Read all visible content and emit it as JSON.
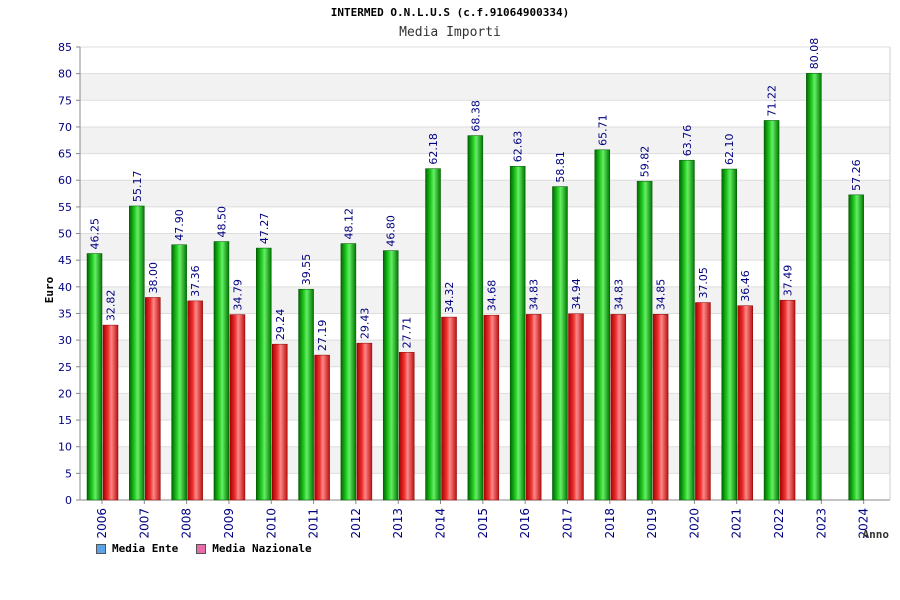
{
  "header": {
    "title": "INTERMED O.N.L.U.S (c.f.91064900334)",
    "subtitle": "Media Importi"
  },
  "legend": {
    "ente_label": "Media Ente",
    "nazionale_label": "Media Nazionale",
    "ente_swatch_color": "#5ba3e6",
    "nazionale_swatch_color": "#e86aa6"
  },
  "chart_data": {
    "type": "bar",
    "title": "INTERMED O.N.L.U.S (c.f.91064900334)",
    "subtitle": "Media Importi",
    "xlabel": "Anno",
    "ylabel": "Euro",
    "ylim": [
      0,
      85
    ],
    "yticks": [
      0,
      5,
      10,
      15,
      20,
      25,
      30,
      35,
      40,
      45,
      50,
      55,
      60,
      65,
      70,
      75,
      80,
      85
    ],
    "categories": [
      "2006",
      "2007",
      "2008",
      "2009",
      "2010",
      "2011",
      "2012",
      "2013",
      "2014",
      "2015",
      "2016",
      "2017",
      "2018",
      "2019",
      "2020",
      "2021",
      "2022",
      "2023",
      "2024"
    ],
    "series": [
      {
        "name": "Media Ente",
        "color": "#00aa00",
        "values": [
          46.25,
          55.17,
          47.9,
          48.5,
          47.27,
          39.55,
          48.12,
          46.8,
          62.18,
          68.38,
          62.63,
          58.81,
          65.71,
          59.82,
          63.76,
          62.1,
          71.22,
          80.08,
          57.26
        ],
        "labels": [
          "46.25",
          "55.17",
          "47.90",
          "48.50",
          "47.27",
          "39.55",
          "48.12",
          "46.80",
          "62.18",
          "68.38",
          "62.63",
          "58.81",
          "65.71",
          "59.82",
          "63.76",
          "62.10",
          "71.22",
          "80.08",
          "57.26"
        ]
      },
      {
        "name": "Media Nazionale",
        "color": "#dd2222",
        "values": [
          32.82,
          38.0,
          37.36,
          34.79,
          29.24,
          27.19,
          29.43,
          27.71,
          34.32,
          34.68,
          34.83,
          34.94,
          34.83,
          34.85,
          37.05,
          36.46,
          37.49,
          null,
          null
        ],
        "labels": [
          "32.82",
          "38.00",
          "37.36",
          "34.79",
          "29.24",
          "27.19",
          "29.43",
          "27.71",
          "34.32",
          "34.68",
          "34.83",
          "34.94",
          "34.83",
          "34.85",
          "37.05",
          "36.46",
          "37.49",
          null,
          null
        ]
      }
    ],
    "grid": true,
    "legend_position": "bottom-left"
  }
}
